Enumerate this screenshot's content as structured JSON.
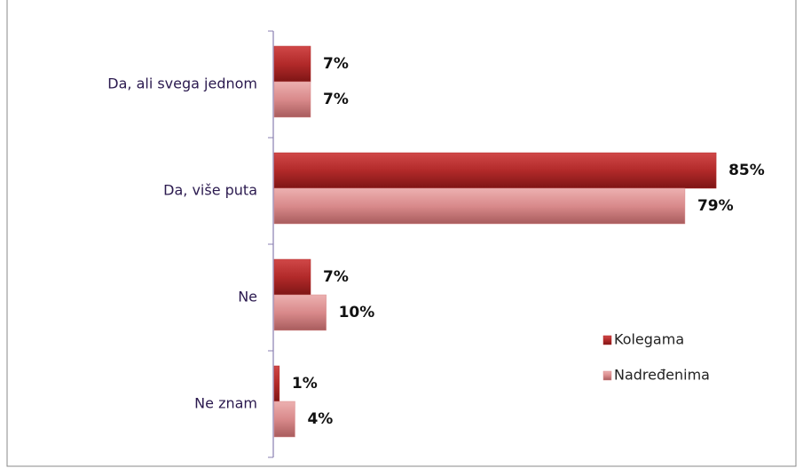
{
  "chart_data": {
    "type": "bar",
    "orientation": "horizontal",
    "categories": [
      "Da, ali svega jednom",
      "Da, više puta",
      "Ne",
      "Ne znam"
    ],
    "series": [
      {
        "name": "Kolegama",
        "color": "#b22a2a",
        "values": [
          7,
          85,
          7,
          1
        ],
        "value_labels": [
          "7%",
          "85%",
          "7%",
          "1%"
        ]
      },
      {
        "name": "Nadređenima",
        "color": "#d98a8b",
        "values": [
          7,
          79,
          10,
          4
        ],
        "value_labels": [
          "7%",
          "79%",
          "10%",
          "4%"
        ]
      }
    ],
    "legend": "right"
  }
}
